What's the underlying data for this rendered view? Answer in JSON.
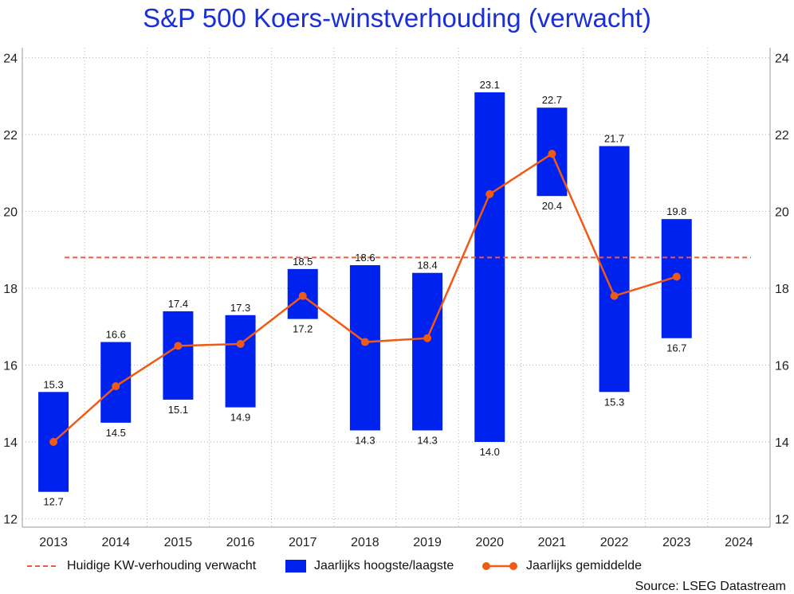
{
  "title": "S&P 500 Koers-winstverhouding (verwacht)",
  "source": "Source: LSEG Datastream",
  "colors": {
    "bar": "#0022ee",
    "line": "#f05a14",
    "ref": "#f05a3c",
    "title": "#1a2fd6"
  },
  "legend": {
    "ref_label": "Huidige KW-verhouding verwacht",
    "bar_label": "Jaarlijks hoogste/laagste",
    "line_label": "Jaarlijks gemiddelde"
  },
  "chart_data": {
    "type": "bar",
    "categories": [
      "2013",
      "2014",
      "2015",
      "2016",
      "2017",
      "2018",
      "2019",
      "2020",
      "2021",
      "2022",
      "2023",
      "2024"
    ],
    "series": [
      {
        "name": "Jaarlijks hoogste/laagste",
        "kind": "floating-bar",
        "high": [
          15.3,
          16.6,
          17.4,
          17.3,
          18.5,
          18.6,
          18.4,
          23.1,
          22.7,
          21.7,
          19.8,
          null
        ],
        "low": [
          12.7,
          14.5,
          15.1,
          14.9,
          17.2,
          14.3,
          14.3,
          14.0,
          20.4,
          15.3,
          16.7,
          null
        ]
      },
      {
        "name": "Jaarlijks gemiddelde",
        "kind": "line",
        "values": [
          14.0,
          15.45,
          16.5,
          16.55,
          17.8,
          16.6,
          16.7,
          20.45,
          21.5,
          17.8,
          18.3,
          null
        ]
      },
      {
        "name": "Huidige KW-verhouding verwacht",
        "kind": "reference-line",
        "value": 18.8
      }
    ],
    "ylim": [
      12,
      24
    ],
    "yticks": [
      12,
      14,
      16,
      18,
      20,
      22,
      24
    ],
    "ytick_labels": [
      "12",
      "14",
      "16",
      "18",
      "20",
      "22",
      "24"
    ],
    "grid": true,
    "legend_position": "bottom",
    "high_labels": [
      "15.3",
      "16.6",
      "17.4",
      "17.3",
      "18.5",
      "18.6",
      "18.4",
      "23.1",
      "22.7",
      "21.7",
      "19.8",
      ""
    ],
    "low_labels": [
      "12.7",
      "14.5",
      "15.1",
      "14.9",
      "17.2",
      "14.3",
      "14.3",
      "14.0",
      "20.4",
      "15.3",
      "16.7",
      ""
    ]
  }
}
